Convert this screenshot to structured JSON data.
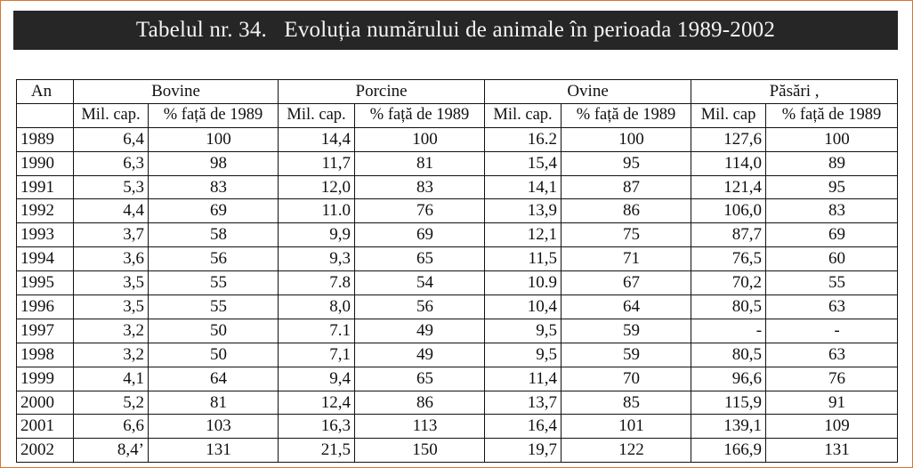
{
  "title": {
    "label": "Tabelul nr. 34.",
    "text": "Evoluția numărului de animale în perioada 1989-2002"
  },
  "table": {
    "year_header": "An",
    "groups": [
      "Bovine",
      "Porcine",
      "Ovine",
      "Păsări ,"
    ],
    "subheaders": [
      "Mil. cap.",
      "% față de 1989",
      "Mil. cap.",
      "% față de 1989",
      "Mil. cap.",
      "% față de 1989",
      "Mil. cap",
      "% față de 1989"
    ],
    "rows": [
      {
        "year": "1989",
        "cells": [
          "6,4",
          "100",
          "14,4",
          "100",
          "16.2",
          "100",
          "127,6",
          "100"
        ]
      },
      {
        "year": "1990",
        "cells": [
          "6,3",
          "98",
          "11,7",
          "81",
          "15,4",
          "95",
          "114,0",
          "89"
        ]
      },
      {
        "year": "1991",
        "cells": [
          "5,3",
          "83",
          "12,0",
          "83",
          "14,1",
          "87",
          "121,4",
          "95"
        ]
      },
      {
        "year": "1992",
        "cells": [
          "4,4",
          "69",
          "11.0",
          "76",
          "13,9",
          "86",
          "106,0",
          "83"
        ]
      },
      {
        "year": "1993",
        "cells": [
          "3,7",
          "58",
          "9,9",
          "69",
          "12,1",
          "75",
          "87,7",
          "69"
        ]
      },
      {
        "year": "1994",
        "cells": [
          "3,6",
          "56",
          "9,3",
          "65",
          "11,5",
          "71",
          "76,5",
          "60"
        ]
      },
      {
        "year": "1995",
        "cells": [
          "3,5",
          "55",
          "7.8",
          "54",
          "10.9",
          "67",
          "70,2",
          "55"
        ]
      },
      {
        "year": "1996",
        "cells": [
          "3,5",
          "55",
          "8,0",
          "56",
          "10,4",
          "64",
          "80,5",
          "63"
        ]
      },
      {
        "year": "1997",
        "cells": [
          "3,2",
          "50",
          "7.1",
          "49",
          "9,5",
          "59",
          "-",
          "-"
        ]
      },
      {
        "year": "1998",
        "cells": [
          "3,2",
          "50",
          "7,1",
          "49",
          "9,5",
          "59",
          "80,5",
          "63"
        ]
      },
      {
        "year": "1999",
        "cells": [
          "4,1",
          "64",
          "9,4",
          "65",
          "11,4",
          "70",
          "96,6",
          "76"
        ]
      },
      {
        "year": "2000",
        "cells": [
          "5,2",
          "81",
          "12,4",
          "86",
          "13,7",
          "85",
          "115,9",
          "91"
        ]
      },
      {
        "year": "2001",
        "cells": [
          "6,6",
          "103",
          "16,3",
          "113",
          "16,4",
          "101",
          "139,1",
          "109"
        ]
      },
      {
        "year": "2002",
        "cells": [
          "8,4’",
          "131",
          "21,5",
          "150",
          "19,7",
          "122",
          "166,9",
          "131"
        ]
      }
    ]
  }
}
